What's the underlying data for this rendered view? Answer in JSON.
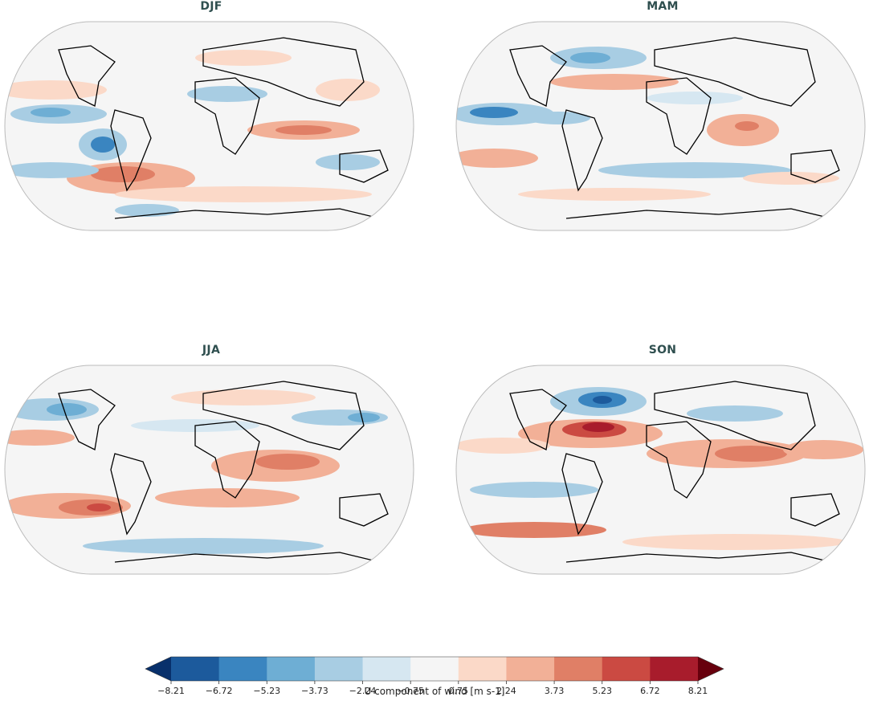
{
  "panels": [
    {
      "title": "DJF"
    },
    {
      "title": "MAM"
    },
    {
      "title": "JJA"
    },
    {
      "title": "SON"
    }
  ],
  "colorbar": {
    "label": "U component of wind [m s-1]",
    "ticks": [
      "−8.21",
      "−6.72",
      "−5.23",
      "−3.73",
      "−2.24",
      "−0.75",
      "0.75",
      "2.24",
      "3.73",
      "5.23",
      "6.72",
      "8.21"
    ],
    "colors": [
      "#1c5a9c",
      "#3a85c0",
      "#6eaed4",
      "#a8cde3",
      "#d6e7f1",
      "#f5f5f5",
      "#fbd9c8",
      "#f2b097",
      "#e07f66",
      "#cb4a42",
      "#a81c2c"
    ],
    "under_color": "#08306b",
    "over_color": "#67000d"
  }
}
